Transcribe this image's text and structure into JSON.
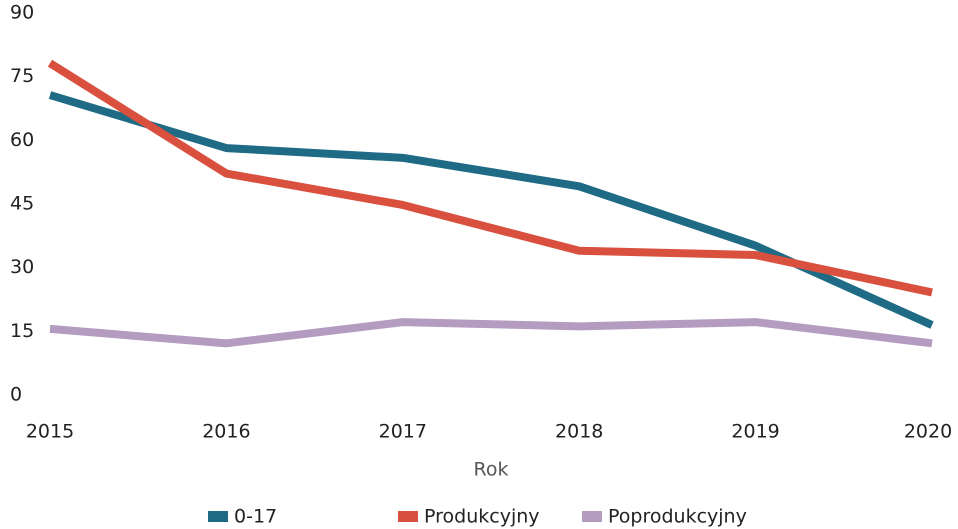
{
  "chart_data": {
    "type": "line",
    "categories": [
      "2015",
      "2016",
      "2017",
      "2018",
      "2019",
      "2020"
    ],
    "x_label": "Rok",
    "series": [
      {
        "name": "0-17",
        "color": "#1f6b85",
        "values": [
          73.5,
          61,
          58.7,
          52,
          38,
          19.3
        ]
      },
      {
        "name": "Produkcyjny",
        "color": "#d9503f",
        "values": [
          81,
          55,
          47.6,
          36.8,
          35.8,
          27
        ]
      },
      {
        "name": "Poprodukcyjny",
        "color": "#b39cc0",
        "values": [
          18.4,
          15,
          20,
          19,
          20,
          15
        ]
      }
    ],
    "ylim": [
      0,
      90
    ],
    "yticks": [
      0,
      15,
      30,
      45,
      60,
      75,
      90
    ],
    "grid": false,
    "legend": "bottom"
  }
}
